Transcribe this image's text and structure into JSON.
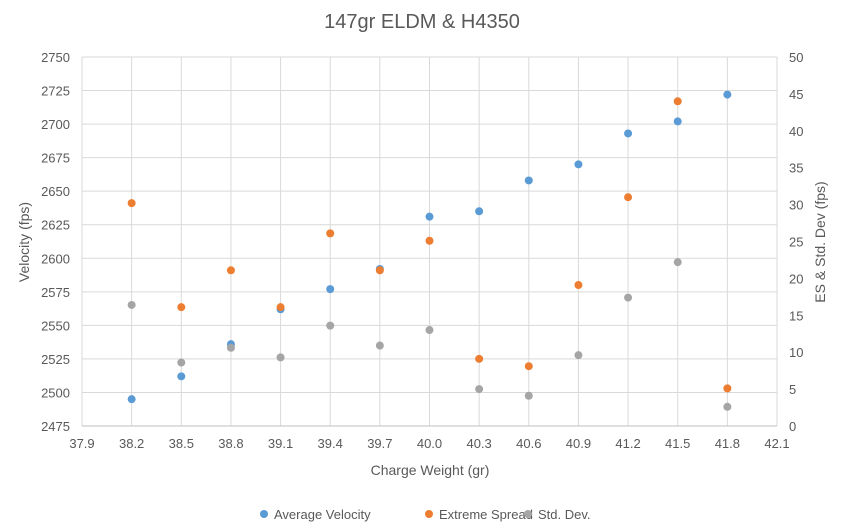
{
  "chart_data": {
    "type": "scatter",
    "title": "147gr ELDM & H4350",
    "xlabel": "Charge Weight (gr)",
    "ylabel": "Velocity (fps)",
    "y2label": "ES & Std. Dev (fps)",
    "xlim": [
      37.9,
      42.1
    ],
    "xticks": [
      "37.9",
      "38.2",
      "38.5",
      "38.8",
      "39.1",
      "39.4",
      "39.7",
      "40.0",
      "40.3",
      "40.6",
      "40.9",
      "41.2",
      "41.5",
      "41.8",
      "42.1"
    ],
    "ylim": [
      2475,
      2750
    ],
    "yticks": [
      "2750",
      "2725",
      "2700",
      "2675",
      "2650",
      "2625",
      "2600",
      "2575",
      "2550",
      "2525",
      "2500",
      "2475"
    ],
    "y2lim": [
      0,
      50
    ],
    "y2ticks": [
      "50",
      "45",
      "40",
      "35",
      "30",
      "25",
      "20",
      "15",
      "10",
      "5",
      "0"
    ],
    "grid": true,
    "legend_position": "bottom",
    "series": [
      {
        "name": "Average Velocity",
        "axis": "left",
        "color": "#5b9bd5",
        "points": [
          [
            38.2,
            2495
          ],
          [
            38.5,
            2512
          ],
          [
            38.8,
            2536
          ],
          [
            39.1,
            2562
          ],
          [
            39.4,
            2577
          ],
          [
            39.7,
            2592
          ],
          [
            40.0,
            2631
          ],
          [
            40.3,
            2635
          ],
          [
            40.6,
            2658
          ],
          [
            40.9,
            2670
          ],
          [
            41.2,
            2693
          ],
          [
            41.5,
            2702
          ],
          [
            41.8,
            2722
          ]
        ]
      },
      {
        "name": "Extreme Spread",
        "axis": "right",
        "color": "#ed7d31",
        "points": [
          [
            38.2,
            30.2
          ],
          [
            38.5,
            16.1
          ],
          [
            38.8,
            21.1
          ],
          [
            39.1,
            16.1
          ],
          [
            39.4,
            26.1
          ],
          [
            39.7,
            21.1
          ],
          [
            40.0,
            25.1
          ],
          [
            40.3,
            9.1
          ],
          [
            40.6,
            8.1
          ],
          [
            40.9,
            19.1
          ],
          [
            41.2,
            31.0
          ],
          [
            41.5,
            44.0
          ],
          [
            41.8,
            5.1
          ]
        ]
      },
      {
        "name": "Std. Dev.",
        "axis": "right",
        "color": "#a5a5a5",
        "points": [
          [
            38.2,
            16.4
          ],
          [
            38.5,
            8.6
          ],
          [
            38.8,
            10.6
          ],
          [
            39.1,
            9.3
          ],
          [
            39.4,
            13.6
          ],
          [
            39.7,
            10.9
          ],
          [
            40.0,
            13.0
          ],
          [
            40.3,
            5.0
          ],
          [
            40.6,
            4.1
          ],
          [
            40.9,
            9.6
          ],
          [
            41.2,
            17.4
          ],
          [
            41.5,
            22.2
          ],
          [
            41.8,
            2.6
          ]
        ]
      }
    ]
  }
}
